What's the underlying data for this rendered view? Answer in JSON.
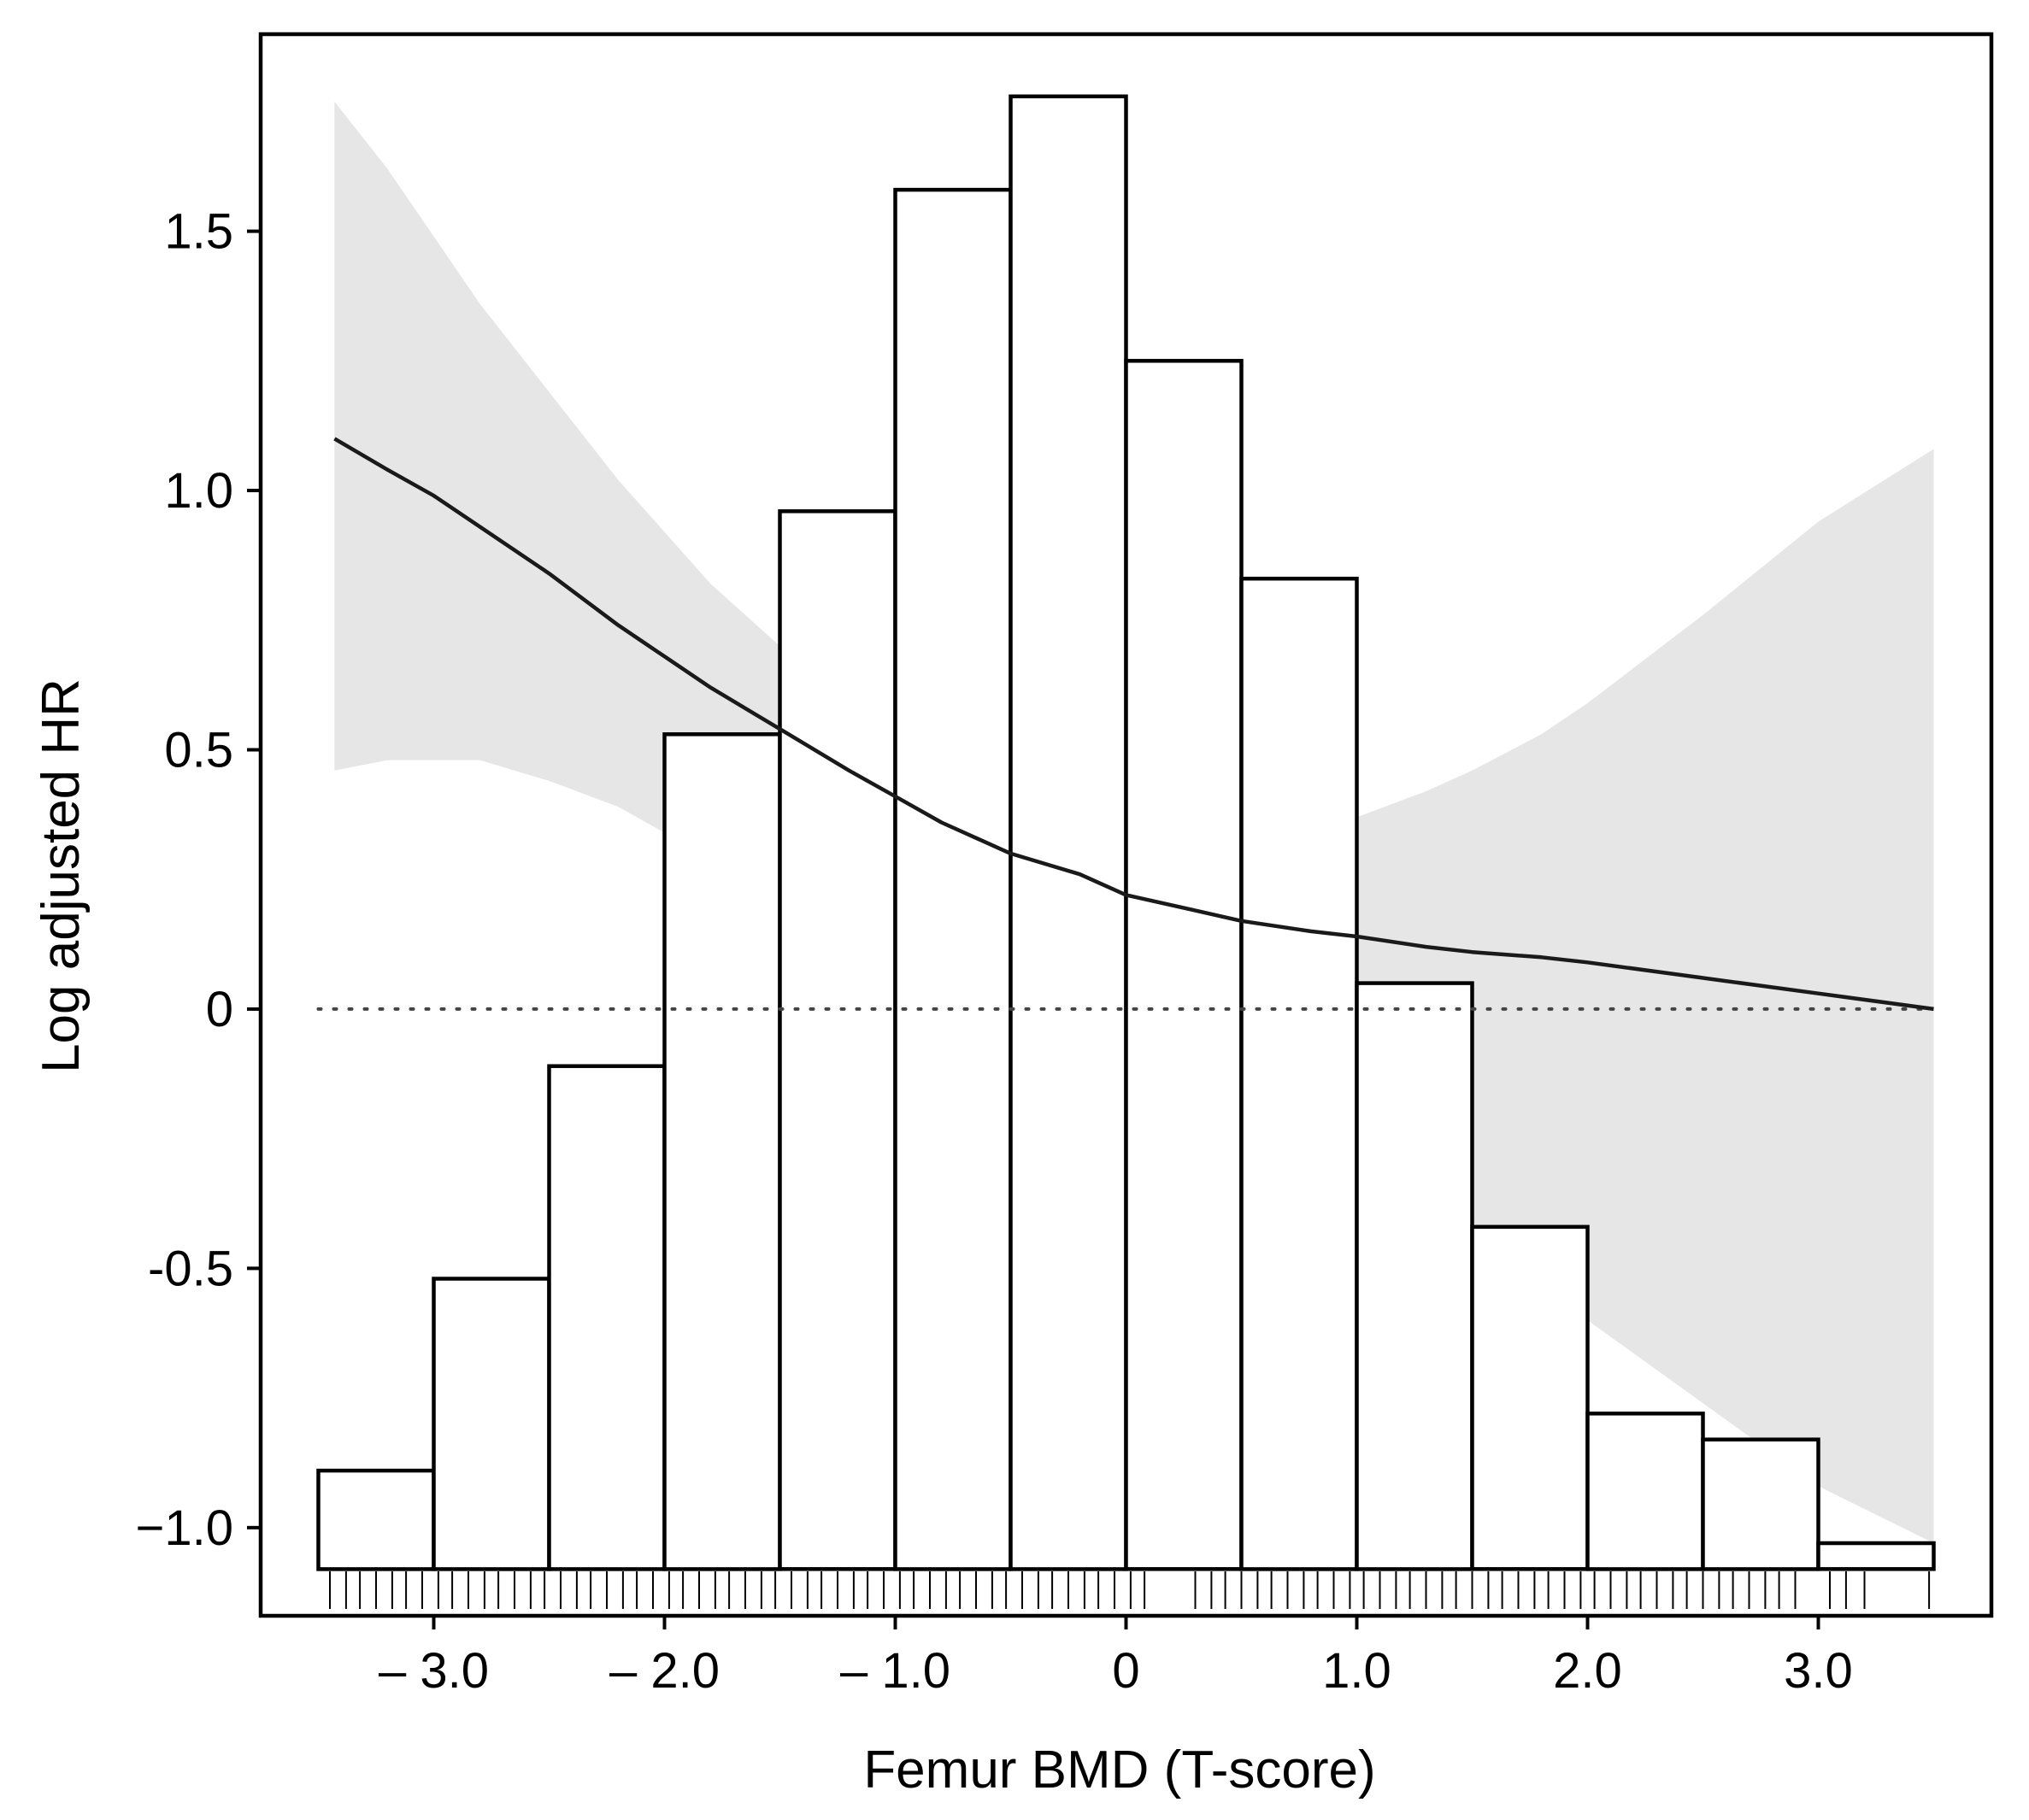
{
  "chart_data": {
    "type": "bar",
    "xlabel": "Femur BMD (T-score)",
    "ylabel": "Log adjusted HR",
    "xlim": [
      -3.75,
      3.75
    ],
    "ylim": [
      -1.17,
      1.88
    ],
    "x_ticks": [
      {
        "value": -3,
        "label": "– 3.0"
      },
      {
        "value": -2,
        "label": "– 2.0"
      },
      {
        "value": -1,
        "label": "– 1.0"
      },
      {
        "value": 0,
        "label": "0"
      },
      {
        "value": 1,
        "label": "1.0"
      },
      {
        "value": 2,
        "label": "2.0"
      },
      {
        "value": 3,
        "label": "3.0"
      }
    ],
    "y_ticks": [
      {
        "value": -1.0,
        "label": "−1.0"
      },
      {
        "value": -0.5,
        "label": "-0.5"
      },
      {
        "value": 0,
        "label": "0"
      },
      {
        "value": 0.5,
        "label": "0.5"
      },
      {
        "value": 1.0,
        "label": "1.0"
      },
      {
        "value": 1.5,
        "label": "1.5"
      }
    ],
    "histogram": {
      "baseline": -1.08,
      "bin_edges": [
        -3.5,
        -3.0,
        -2.5,
        -2.0,
        -1.5,
        -1.0,
        -0.5,
        0,
        0.5,
        1.0,
        1.5,
        2.0,
        2.5,
        3.0,
        3.5
      ],
      "bar_tops": [
        -0.89,
        -0.52,
        -0.11,
        0.53,
        0.96,
        1.58,
        1.76,
        1.25,
        0.83,
        0.05,
        -0.42,
        -0.78,
        -0.83,
        -1.03
      ]
    },
    "series": [
      {
        "name": "Log adjusted HR",
        "x": [
          -3.43,
          -3.2,
          -3.0,
          -2.8,
          -2.5,
          -2.2,
          -2.0,
          -1.8,
          -1.5,
          -1.2,
          -1.0,
          -0.8,
          -0.5,
          -0.2,
          0,
          0.3,
          0.5,
          0.8,
          1.0,
          1.3,
          1.5,
          1.8,
          2.0,
          2.5,
          3.0,
          3.5
        ],
        "y": [
          1.1,
          1.04,
          0.99,
          0.93,
          0.84,
          0.74,
          0.68,
          0.62,
          0.54,
          0.46,
          0.41,
          0.36,
          0.3,
          0.26,
          0.22,
          0.19,
          0.17,
          0.15,
          0.14,
          0.12,
          0.11,
          0.1,
          0.09,
          0.06,
          0.03,
          0.0
        ]
      }
    ],
    "confidence_band": {
      "x": [
        -3.43,
        -3.2,
        -3.0,
        -2.8,
        -2.5,
        -2.2,
        -2.0,
        -1.8,
        -1.5,
        -1.2,
        -1.0,
        -0.8,
        -0.5,
        -0.2,
        0,
        0.3,
        0.5,
        0.8,
        1.0,
        1.3,
        1.5,
        1.8,
        2.0,
        2.5,
        3.0,
        3.5
      ],
      "upper": [
        1.75,
        1.62,
        1.49,
        1.36,
        1.19,
        1.02,
        0.92,
        0.82,
        0.7,
        0.6,
        0.53,
        0.45,
        0.38,
        0.34,
        0.33,
        0.32,
        0.33,
        0.35,
        0.37,
        0.42,
        0.46,
        0.53,
        0.59,
        0.76,
        0.94,
        1.08
      ],
      "lower": [
        0.46,
        0.48,
        0.48,
        0.48,
        0.44,
        0.39,
        0.34,
        0.3,
        0.26,
        0.22,
        0.19,
        0.16,
        0.12,
        0.06,
        0.02,
        -0.04,
        -0.1,
        -0.18,
        -0.25,
        -0.34,
        -0.41,
        -0.53,
        -0.6,
        -0.76,
        -0.92,
        -1.03
      ]
    },
    "reference_line": {
      "y": 0,
      "style": "dotted"
    },
    "rug_x": [
      -3.45,
      -3.38,
      -3.32,
      -3.25,
      -3.18,
      -3.12,
      -3.05,
      -2.98,
      -2.92,
      -2.85,
      -2.78,
      -2.72,
      -2.65,
      -2.58,
      -2.52,
      -2.45,
      -2.38,
      -2.32,
      -2.25,
      -2.18,
      -2.12,
      -2.05,
      -1.98,
      -1.92,
      -1.85,
      -1.78,
      -1.72,
      -1.65,
      -1.58,
      -1.52,
      -1.45,
      -1.38,
      -1.32,
      -1.25,
      -1.18,
      -1.12,
      -1.05,
      -0.98,
      -0.92,
      -0.85,
      -0.78,
      -0.72,
      -0.65,
      -0.58,
      -0.52,
      -0.45,
      -0.38,
      -0.32,
      -0.25,
      -0.18,
      -0.12,
      -0.05,
      0.02,
      0.08,
      0.3,
      0.37,
      0.43,
      0.5,
      0.57,
      0.63,
      0.7,
      0.77,
      0.83,
      0.9,
      0.97,
      1.03,
      1.1,
      1.17,
      1.23,
      1.3,
      1.37,
      1.43,
      1.5,
      1.57,
      1.63,
      1.7,
      1.77,
      1.83,
      1.9,
      1.97,
      2.03,
      2.1,
      2.17,
      2.23,
      2.3,
      2.37,
      2.43,
      2.5,
      2.57,
      2.63,
      2.7,
      2.77,
      2.83,
      2.9,
      3.05,
      3.12,
      3.2,
      3.48
    ]
  }
}
